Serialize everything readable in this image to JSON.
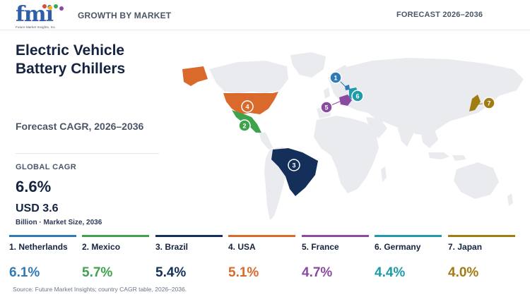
{
  "header": {
    "logo_text": "fmi",
    "logo_tagline": "Future Market Insights, Inc.",
    "left_label": "GROWTH BY MARKET",
    "right_label": "FORECAST 2026–2036"
  },
  "panel": {
    "title": "Electric Vehicle Battery Chillers",
    "subtitle": "Forecast CAGR, 2026–2036",
    "global_cagr_label": "GLOBAL CAGR",
    "global_cagr_value": "6.6%",
    "market_size_value": "USD 3.6",
    "market_size_label": "Billion · Market Size, 2036"
  },
  "countries": [
    {
      "rank": "1",
      "name": "1. Netherlands",
      "cagr": "6.1%",
      "color": "#2e7bb6"
    },
    {
      "rank": "2",
      "name": "2. Mexico",
      "cagr": "5.7%",
      "color": "#3fa34d"
    },
    {
      "rank": "3",
      "name": "3. Brazil",
      "cagr": "5.4%",
      "color": "#14305a"
    },
    {
      "rank": "4",
      "name": "4. USA",
      "cagr": "5.1%",
      "color": "#d96a2b"
    },
    {
      "rank": "5",
      "name": "5. France",
      "cagr": "4.7%",
      "color": "#8a4ca0"
    },
    {
      "rank": "6",
      "name": "6. Germany",
      "cagr": "4.4%",
      "color": "#1f9aa8"
    },
    {
      "rank": "7",
      "name": "7. Japan",
      "cagr": "4.0%",
      "color": "#a07c12"
    }
  ],
  "colors": {
    "land": "#e9ebee",
    "logo_blue": "#2f5da8"
  },
  "source": "Source: Future Market Insights; country CAGR table, 2026–2036."
}
